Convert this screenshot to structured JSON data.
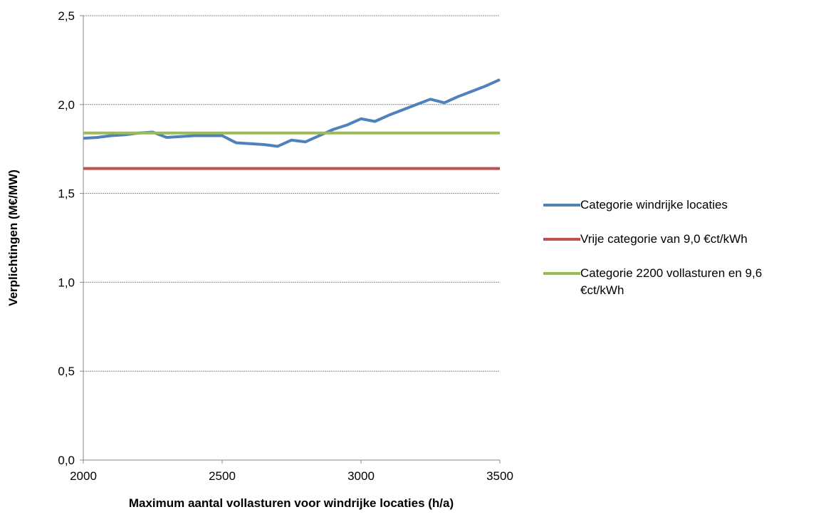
{
  "chart_data": {
    "type": "line",
    "xlabel": "Maximum aantal vollasturen voor windrijke locaties (h/a)",
    "ylabel": "Verplichtingen (M€/MW)",
    "x": [
      2000,
      2050,
      2100,
      2150,
      2200,
      2250,
      2300,
      2350,
      2400,
      2450,
      2500,
      2550,
      2600,
      2650,
      2700,
      2750,
      2800,
      2850,
      2900,
      2950,
      3000,
      3050,
      3100,
      3150,
      3200,
      3250,
      3300,
      3350,
      3400,
      3450,
      3500
    ],
    "series": [
      {
        "name": "Categorie windrijke locaties",
        "color": "#4f81bd",
        "values": [
          1.81,
          1.815,
          1.825,
          1.83,
          1.84,
          1.845,
          1.815,
          1.82,
          1.825,
          1.825,
          1.825,
          1.785,
          1.78,
          1.775,
          1.765,
          1.8,
          1.79,
          1.825,
          1.86,
          1.885,
          1.92,
          1.905,
          1.94,
          1.97,
          2.0,
          2.03,
          2.01,
          2.045,
          2.075,
          2.105,
          2.14
        ]
      },
      {
        "name": "Vrije categorie van 9,0 €ct/kWh",
        "color": "#c0504d",
        "x": [
          2000,
          3500
        ],
        "values": [
          1.64,
          1.64
        ]
      },
      {
        "name": "Categorie 2200 vollasturen en 9,6 €ct/kWh",
        "color": "#9bbb59",
        "x": [
          2000,
          3500
        ],
        "values": [
          1.84,
          1.84
        ]
      }
    ],
    "xlim": [
      2000,
      3500
    ],
    "xticks": [
      2000,
      2500,
      3000,
      3500
    ],
    "ylim": [
      0,
      2.5
    ],
    "yticks": [
      {
        "value": 0,
        "label": "0,0"
      },
      {
        "value": 0.5,
        "label": "0,5"
      },
      {
        "value": 1,
        "label": "1,0"
      },
      {
        "value": 1.5,
        "label": "1,5"
      },
      {
        "value": 2,
        "label": "2,0"
      },
      {
        "value": 2.5,
        "label": "2,5"
      }
    ],
    "grid": true,
    "legend": "right"
  }
}
